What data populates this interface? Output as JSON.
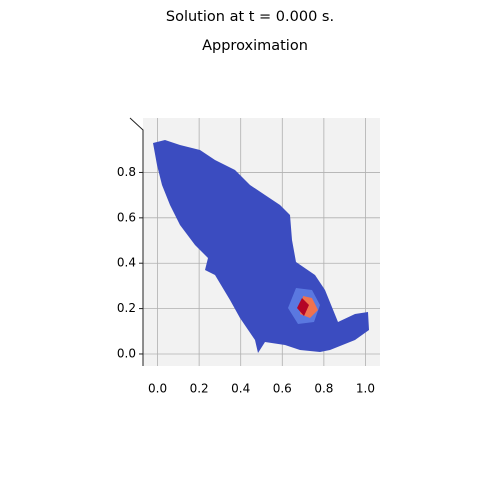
{
  "chart_data": {
    "type": "surface",
    "title": "Solution at t = 0.000 s.",
    "subtitle": "Approximation",
    "xlim": [
      -0.07,
      1.07
    ],
    "ylim": [
      -0.053,
      1.04
    ],
    "xticks": [
      {
        "value": 0,
        "label": "0.0"
      },
      0.2,
      0.4,
      0.6,
      0.8,
      {
        "value": 1,
        "label": "1.0"
      }
    ],
    "yticks": [
      {
        "value": 0,
        "label": "0.0"
      },
      0.2,
      0.4,
      0.6,
      0.8
    ],
    "grid": true
  }
}
